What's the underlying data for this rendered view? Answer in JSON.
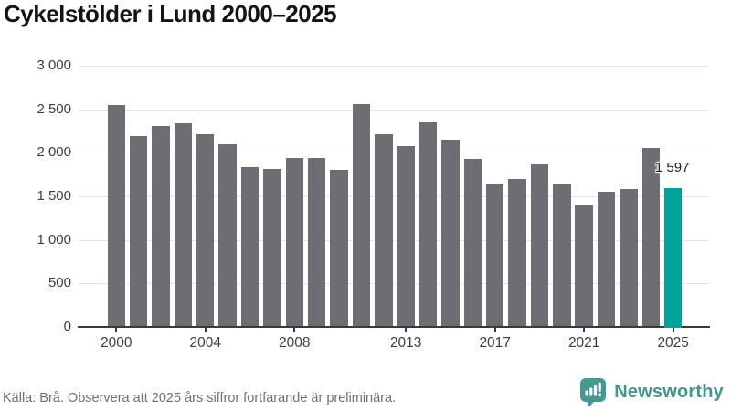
{
  "title": "Cykelstölder i Lund 2000–2025",
  "footer": {
    "source_note": "Källa: Brå. Observera att 2025 års siffror fortfarande är preliminära.",
    "brand": "Newsworthy"
  },
  "colors": {
    "bar": "#6d6d73",
    "highlight": "#00a39b",
    "gridline": "#e4e4e4",
    "axis": "#3a3a3a",
    "brand_teal": "#449a90"
  },
  "chart_data": {
    "type": "bar",
    "title": "Cykelstölder i Lund 2000–2025",
    "x": [
      2000,
      2001,
      2002,
      2003,
      2004,
      2005,
      2006,
      2007,
      2008,
      2009,
      2010,
      2011,
      2012,
      2013,
      2014,
      2015,
      2016,
      2017,
      2018,
      2019,
      2020,
      2021,
      2022,
      2023,
      2024,
      2025
    ],
    "values": [
      2553,
      2190,
      2308,
      2341,
      2218,
      2097,
      1836,
      1812,
      1941,
      1945,
      1800,
      2563,
      2212,
      2073,
      2352,
      2150,
      1928,
      1634,
      1698,
      1871,
      1645,
      1400,
      1553,
      1584,
      2055,
      1597
    ],
    "highlight_year": 2025,
    "annotation": {
      "year": 2025,
      "text": "1 597"
    },
    "ylim": [
      0,
      3000
    ],
    "grid": "horizontal",
    "legend": "none",
    "y_ticks": [
      {
        "v": 0,
        "label": "0"
      },
      {
        "v": 500,
        "label": "500"
      },
      {
        "v": 1000,
        "label": "1 000"
      },
      {
        "v": 1500,
        "label": "1 500"
      },
      {
        "v": 2000,
        "label": "2 000"
      },
      {
        "v": 2500,
        "label": "2 500"
      },
      {
        "v": 3000,
        "label": "3 000"
      }
    ],
    "x_ticks": [
      {
        "year": 2000,
        "label": "2000"
      },
      {
        "year": 2004,
        "label": "2004"
      },
      {
        "year": 2008,
        "label": "2008"
      },
      {
        "year": 2013,
        "label": "2013"
      },
      {
        "year": 2017,
        "label": "2017"
      },
      {
        "year": 2021,
        "label": "2021"
      },
      {
        "year": 2025,
        "label": "2025"
      }
    ]
  }
}
